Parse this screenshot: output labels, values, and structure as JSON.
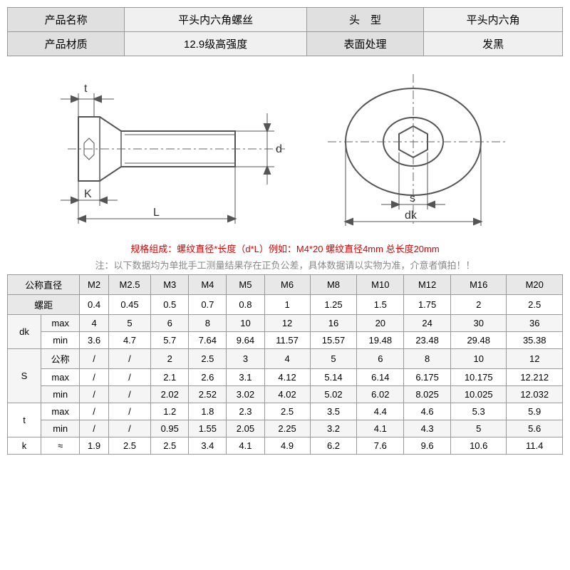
{
  "info": {
    "name_label": "产品名称",
    "name_value": "平头内六角螺丝",
    "head_label": "头　型",
    "head_value": "平头内六角",
    "material_label": "产品材质",
    "material_value": "12.9级高强度",
    "surface_label": "表面处理",
    "surface_value": "发黑"
  },
  "diagram": {
    "colors": {
      "line": "#555",
      "background": "#ffffff",
      "dash": "#666"
    },
    "labels": {
      "t": "t",
      "d": "d",
      "k": "K",
      "L": "L",
      "s": "s",
      "dk": "dk"
    },
    "font_size": 16
  },
  "notes": {
    "red": "规格组成：螺纹直径*长度（d*L）例如：M4*20 螺纹直径4mm 总长度20mm",
    "gray": "注：以下数据均为单批手工测量结果存在正负公差，具体数据请以实物为准，介意者慎拍！！"
  },
  "spec": {
    "headers": {
      "diameter": "公称直径",
      "pitch": "螺距",
      "dk": "dk",
      "S": "S",
      "t": "t",
      "k": "k",
      "nominal": "公称",
      "max": "max",
      "min": "min",
      "approx": "≈"
    },
    "sizes": [
      "M2",
      "M2.5",
      "M3",
      "M4",
      "M5",
      "M6",
      "M8",
      "M10",
      "M12",
      "M16",
      "M20"
    ],
    "pitch": [
      "0.4",
      "0.45",
      "0.5",
      "0.7",
      "0.8",
      "1",
      "1.25",
      "1.5",
      "1.75",
      "2",
      "2.5"
    ],
    "dk_max": [
      "4",
      "5",
      "6",
      "8",
      "10",
      "12",
      "16",
      "20",
      "24",
      "30",
      "36"
    ],
    "dk_min": [
      "3.6",
      "4.7",
      "5.7",
      "7.64",
      "9.64",
      "11.57",
      "15.57",
      "19.48",
      "23.48",
      "29.48",
      "35.38"
    ],
    "S_nom": [
      "/",
      "/",
      "2",
      "2.5",
      "3",
      "4",
      "5",
      "6",
      "8",
      "10",
      "12"
    ],
    "S_max": [
      "/",
      "/",
      "2.1",
      "2.6",
      "3.1",
      "4.12",
      "5.14",
      "6.14",
      "6.175",
      "10.175",
      "12.212"
    ],
    "S_min": [
      "/",
      "/",
      "2.02",
      "2.52",
      "3.02",
      "4.02",
      "5.02",
      "6.02",
      "8.025",
      "10.025",
      "12.032"
    ],
    "t_max": [
      "/",
      "/",
      "1.2",
      "1.8",
      "2.3",
      "2.5",
      "3.5",
      "4.4",
      "4.6",
      "5.3",
      "5.9"
    ],
    "t_min": [
      "/",
      "/",
      "0.95",
      "1.55",
      "2.05",
      "2.25",
      "3.2",
      "4.1",
      "4.3",
      "5",
      "5.6"
    ],
    "k": [
      "1.9",
      "2.5",
      "2.5",
      "3.4",
      "4.1",
      "4.9",
      "6.2",
      "7.6",
      "9.6",
      "10.6",
      "11.4"
    ],
    "colors": {
      "header_bg": "#e8e8e8",
      "alt_bg": "#f5f5f5",
      "border": "#999999",
      "text": "#333333"
    }
  }
}
